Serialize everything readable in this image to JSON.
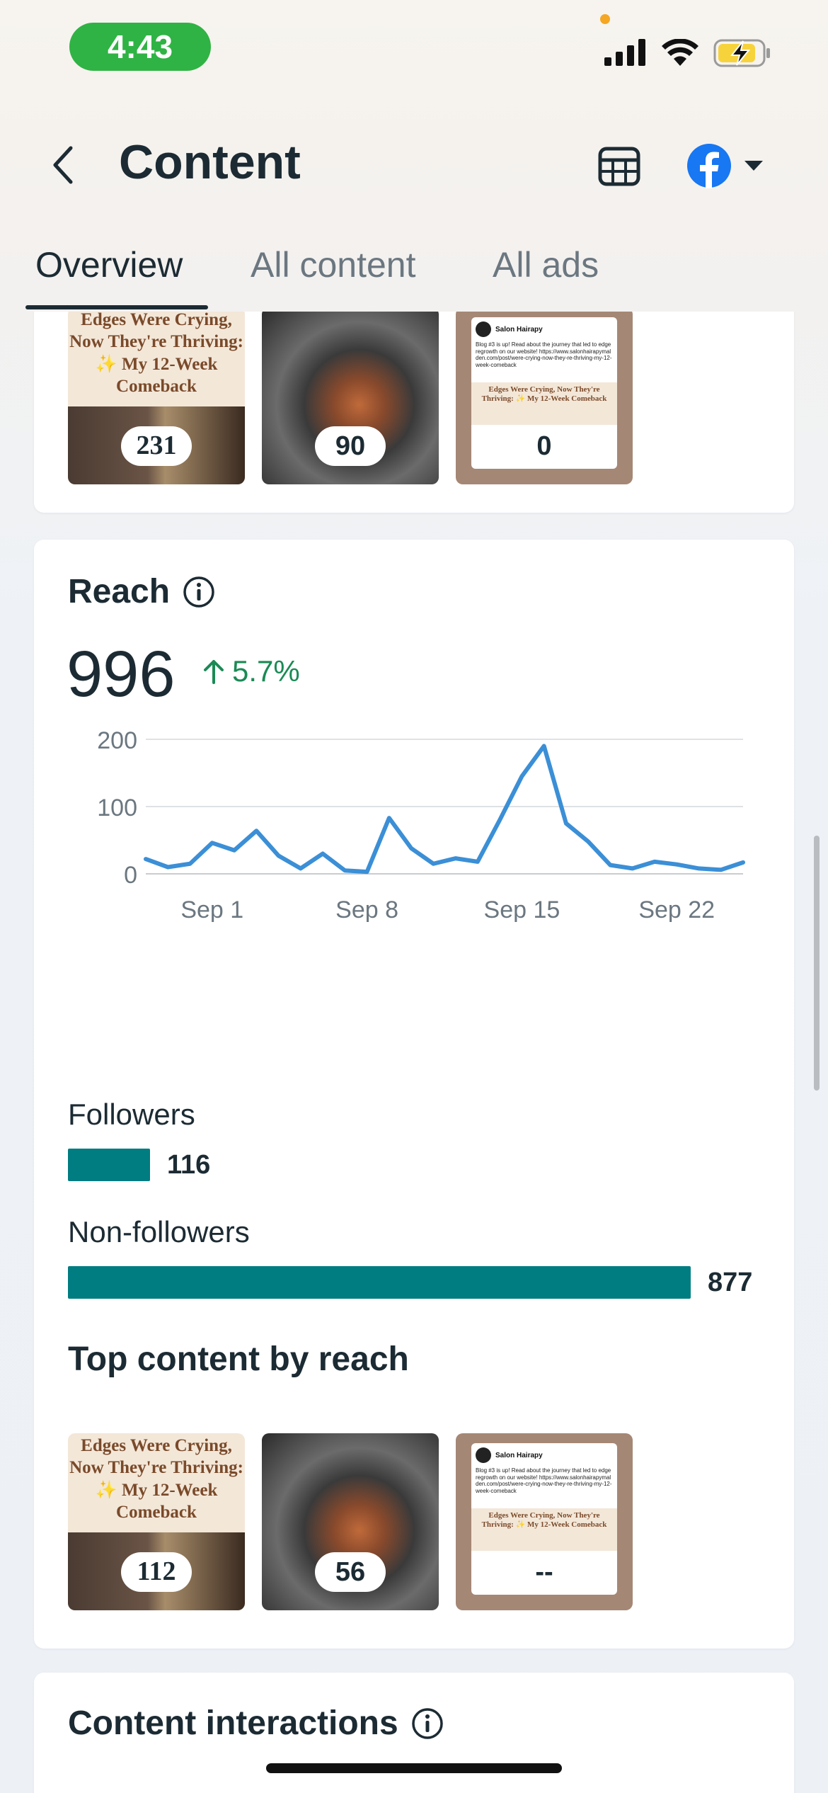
{
  "status_bar": {
    "time": "4:43",
    "battery_color": "#f7d33b",
    "pill_color": "#2fb344"
  },
  "header": {
    "title": "Content",
    "back_icon": "chevron-left-icon",
    "table_icon": "table-icon",
    "platform_icon": "facebook-icon",
    "dropdown_icon": "caret-down-icon"
  },
  "tabs": [
    {
      "label": "Overview",
      "active": true
    },
    {
      "label": "All content",
      "active": false
    },
    {
      "label": "All ads",
      "active": false
    }
  ],
  "top_card": {
    "thumbnails": [
      {
        "count": "231",
        "text": "Edges Were Crying, Now They're Thriving: ✨ My 12-Week Comeback"
      },
      {
        "count": "90"
      },
      {
        "count": "0",
        "post_author": "Salon Hairapy"
      }
    ]
  },
  "reach": {
    "title": "Reach",
    "value": "996",
    "delta": "5.7%",
    "followers_label": "Followers",
    "followers_value": "116",
    "nonfollowers_label": "Non-followers",
    "nonfollowers_value": "877",
    "top_content_title": "Top content by reach",
    "top_thumbnails": [
      {
        "count": "112",
        "text": "Edges Were Crying, Now They're Thriving: ✨ My 12-Week Comeback"
      },
      {
        "count": "56"
      },
      {
        "count": "--",
        "post_author": "Salon Hairapy"
      }
    ],
    "accent_color": "#007d81",
    "line_color": "#3b8fd6"
  },
  "post_preview": {
    "author": "Salon Hairapy",
    "body": "Blog #3 is up! Read about the journey that led to edge regrowth on our website! https://www.salonhairapymalden.com/post/were-crying-now-they-re-thriving-my-12-week-comeback",
    "headline": "Edges Were Crying, Now They're Thriving: ✨ My 12-Week Comeback"
  },
  "interactions": {
    "title": "Content interactions"
  },
  "chart_data": {
    "type": "line",
    "x": [
      "Aug 29",
      "Aug 30",
      "Aug 31",
      "Sep 1",
      "Sep 2",
      "Sep 3",
      "Sep 4",
      "Sep 5",
      "Sep 6",
      "Sep 7",
      "Sep 8",
      "Sep 9",
      "Sep 10",
      "Sep 11",
      "Sep 12",
      "Sep 13",
      "Sep 14",
      "Sep 15",
      "Sep 16",
      "Sep 17",
      "Sep 18",
      "Sep 19",
      "Sep 20",
      "Sep 21",
      "Sep 22",
      "Sep 23",
      "Sep 24",
      "Sep 25"
    ],
    "series": [
      {
        "values": [
          22,
          10,
          15,
          46,
          35,
          64,
          27,
          8,
          30,
          5,
          3,
          83,
          38,
          15,
          23,
          18,
          80,
          145,
          190,
          75,
          48,
          13,
          8,
          18,
          14,
          8,
          6,
          17
        ]
      }
    ],
    "xtick_labels": [
      "Sep 1",
      "Sep 8",
      "Sep 15",
      "Sep 22"
    ],
    "ytick_labels": [
      "0",
      "100",
      "200"
    ],
    "ylim": [
      0,
      200
    ],
    "grid": true
  }
}
